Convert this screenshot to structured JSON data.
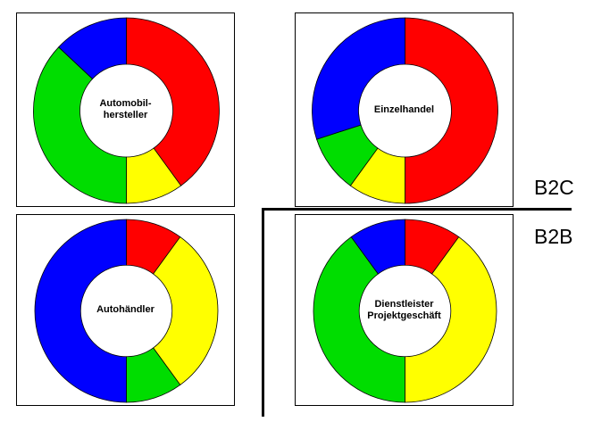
{
  "segment_labels": {
    "upper": "B2C",
    "lower": "B2B"
  },
  "colors": {
    "red": "#ff0000",
    "yellow": "#ffff00",
    "green": "#00dd00",
    "blue": "#0000ff"
  },
  "chart_data": [
    {
      "type": "pie",
      "variant": "donut",
      "center_label": [
        "Automobil-",
        "hersteller"
      ],
      "slices": [
        {
          "color": "red",
          "value": 0.4
        },
        {
          "color": "yellow",
          "value": 0.1
        },
        {
          "color": "green",
          "value": 0.37
        },
        {
          "color": "blue",
          "value": 0.13
        }
      ]
    },
    {
      "type": "pie",
      "variant": "donut",
      "center_label": [
        "Einzelhandel"
      ],
      "slices": [
        {
          "color": "red",
          "value": 0.5
        },
        {
          "color": "yellow",
          "value": 0.1
        },
        {
          "color": "green",
          "value": 0.1
        },
        {
          "color": "blue",
          "value": 0.3
        }
      ]
    },
    {
      "type": "pie",
      "variant": "donut",
      "center_label": [
        "Autohändler"
      ],
      "slices": [
        {
          "color": "red",
          "value": 0.1
        },
        {
          "color": "yellow",
          "value": 0.3
        },
        {
          "color": "green",
          "value": 0.1
        },
        {
          "color": "blue",
          "value": 0.5
        }
      ]
    },
    {
      "type": "pie",
      "variant": "donut",
      "center_label": [
        "Dienstleister",
        "Projektgeschäft"
      ],
      "slices": [
        {
          "color": "red",
          "value": 0.1
        },
        {
          "color": "yellow",
          "value": 0.4
        },
        {
          "color": "green",
          "value": 0.4
        },
        {
          "color": "blue",
          "value": 0.1
        }
      ]
    }
  ]
}
